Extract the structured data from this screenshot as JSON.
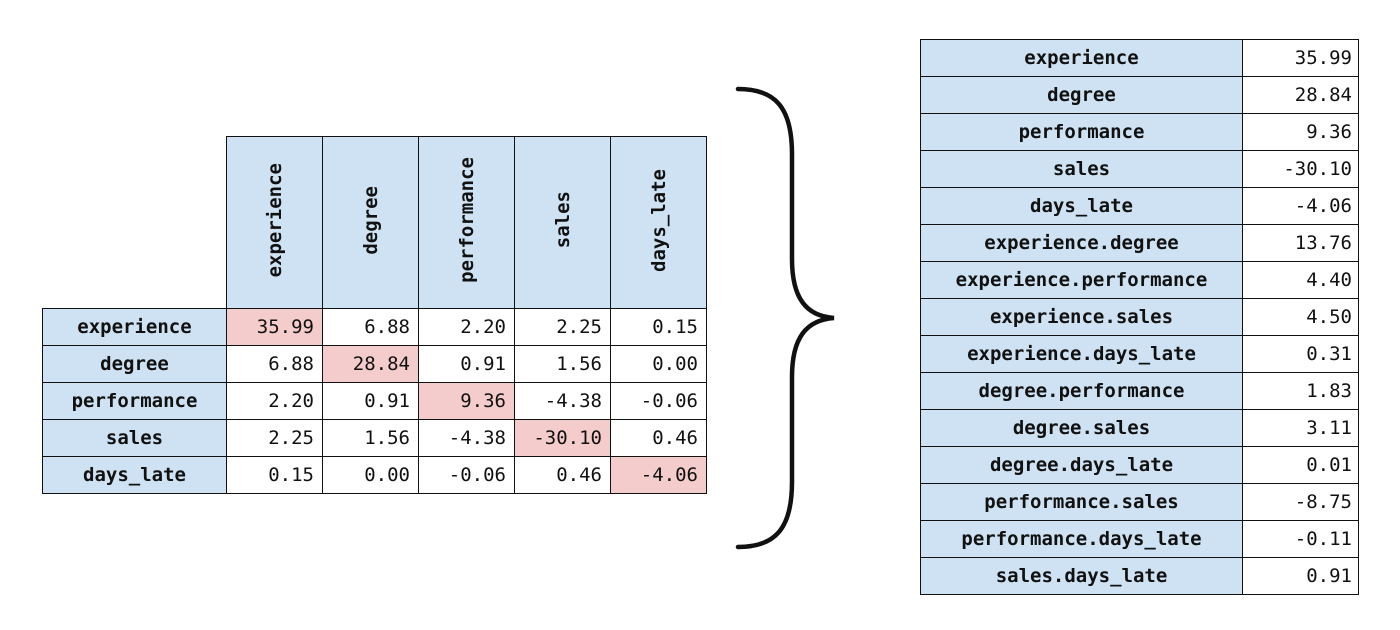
{
  "matrix": {
    "columns": [
      "experience",
      "degree",
      "performance",
      "sales",
      "days_late"
    ],
    "rows": [
      {
        "label": "experience",
        "values": [
          "35.99",
          "6.88",
          "2.20",
          "2.25",
          "0.15"
        ]
      },
      {
        "label": "degree",
        "values": [
          "6.88",
          "28.84",
          "0.91",
          "1.56",
          "0.00"
        ]
      },
      {
        "label": "performance",
        "values": [
          "2.20",
          "0.91",
          "9.36",
          "-4.38",
          "-0.06"
        ]
      },
      {
        "label": "sales",
        "values": [
          "2.25",
          "1.56",
          "-4.38",
          "-30.10",
          "0.46"
        ]
      },
      {
        "label": "days_late",
        "values": [
          "0.15",
          "0.00",
          "-0.06",
          "0.46",
          "-4.06"
        ]
      }
    ],
    "colors": {
      "header": "#cfe2f3",
      "diagonal": "#f4cccc",
      "cell": "#ffffff"
    }
  },
  "brace": {
    "icon": "right-curly-brace-icon"
  },
  "effects": {
    "rows": [
      {
        "term": "experience",
        "value": "35.99"
      },
      {
        "term": "degree",
        "value": "28.84"
      },
      {
        "term": "performance",
        "value": "9.36"
      },
      {
        "term": "sales",
        "value": "-30.10"
      },
      {
        "term": "days_late",
        "value": "-4.06"
      },
      {
        "term": "experience.degree",
        "value": "13.76"
      },
      {
        "term": "experience.performance",
        "value": "4.40"
      },
      {
        "term": "experience.sales",
        "value": "4.50"
      },
      {
        "term": "experience.days_late",
        "value": "0.31"
      },
      {
        "term": "degree.performance",
        "value": "1.83"
      },
      {
        "term": "degree.sales",
        "value": "3.11"
      },
      {
        "term": "degree.days_late",
        "value": "0.01"
      },
      {
        "term": "performance.sales",
        "value": "-8.75"
      },
      {
        "term": "performance.days_late",
        "value": "-0.11"
      },
      {
        "term": "sales.days_late",
        "value": "0.91"
      }
    ]
  }
}
